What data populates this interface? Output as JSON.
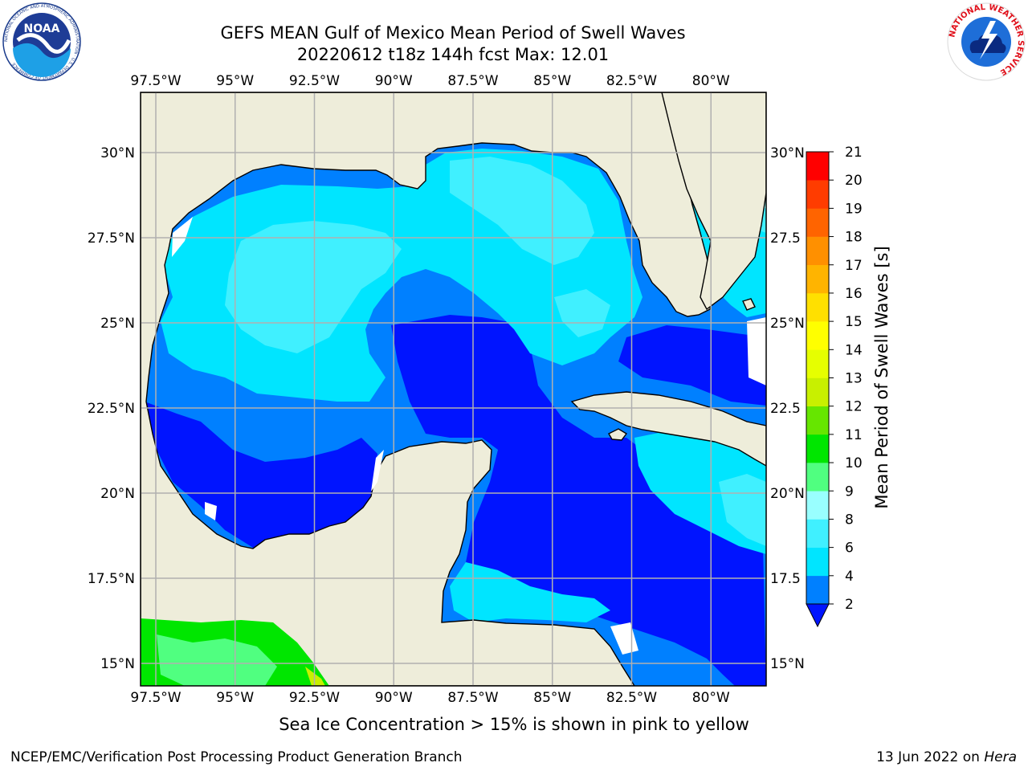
{
  "header": {
    "title": "GEFS MEAN Gulf of Mexico Mean Period of Swell Waves",
    "subtitle": "20220612 t18z 144h fcst   Max: 12.01"
  },
  "logos": {
    "left": {
      "text": "NOAA",
      "ring": "NATIONAL OCEANIC AND ATMOSPHERIC ADMINISTRATION · U.S. DEPARTMENT OF COMMERCE"
    },
    "right": {
      "ring": "NATIONAL WEATHER SERVICE"
    }
  },
  "map": {
    "lon_labels": [
      "97.5°W",
      "95°W",
      "92.5°W",
      "90°W",
      "87.5°W",
      "85°W",
      "82.5°W",
      "80°W"
    ],
    "lat_labels_left": [
      "30°N",
      "27.5°N",
      "25°N",
      "22.5°N",
      "20°N",
      "17.5°N",
      "15°N"
    ],
    "lat_labels_right": [
      "30°N",
      "27.5",
      "25°N",
      "22.5",
      "20°N",
      "17.5",
      "15°N"
    ],
    "lon_values": [
      -97.5,
      -95,
      -92.5,
      -90,
      -87.5,
      -85,
      -82.5,
      -80
    ],
    "lat_values": [
      30,
      27.5,
      25,
      22.5,
      20,
      17.5,
      15
    ],
    "land_color": "#eeedda",
    "grid_color": "#b0b0b0"
  },
  "colorbar": {
    "label": "Mean Period of Swell Waves [s]",
    "ticks": [
      "2",
      "4",
      "6",
      "8",
      "9",
      "10",
      "11",
      "12",
      "13",
      "14",
      "15",
      "16",
      "17",
      "18",
      "19",
      "20",
      "21"
    ],
    "colors": [
      "#0080ff",
      "#00e5ff",
      "#40f0ff",
      "#99ffff",
      "#50ff80",
      "#00e600",
      "#66e600",
      "#c8f000",
      "#e6ff00",
      "#ffff00",
      "#ffe000",
      "#ffb400",
      "#ff9000",
      "#ff6400",
      "#ff3c00",
      "#ff0000"
    ],
    "under_color": "#0014ff"
  },
  "footer": {
    "note": "Sea Ice Concentration > 15% is shown in pink to yellow",
    "credit": "NCEP/EMC/Verification Post Processing Product Generation Branch",
    "date": "13 Jun 2022 on",
    "host": "Hera"
  }
}
